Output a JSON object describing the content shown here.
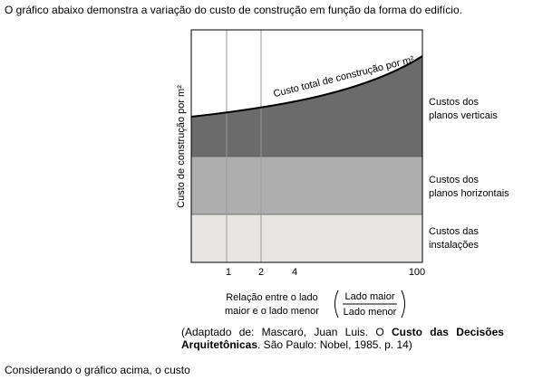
{
  "header": {
    "text": "O gráfico abaixo demonstra a variação do custo de construção em função da forma do edifício."
  },
  "figure": {
    "y_axis_label": "Custo de construção por m²",
    "curve_label": "Custo total de construção por m²",
    "x_ticks": [
      1,
      2,
      4,
      100
    ],
    "regions": [
      {
        "lines": [
          "Custos dos",
          "planos verticais"
        ]
      },
      {
        "lines": [
          "Custos dos",
          "planos horizontais"
        ]
      },
      {
        "lines": [
          "Custos das",
          "instalações"
        ]
      }
    ],
    "x_axis_label": {
      "lines": [
        "Relação entre o lado",
        "maior e o lado menor"
      ]
    },
    "fraction": {
      "numerator": "Lado maior",
      "denominator": "Lado menor"
    }
  },
  "caption": {
    "prefix": "(Adaptado de: Mascaró, Juan Luis. O ",
    "bold": "Custo das Decisões Arquitetônicas",
    "suffix": ". São Paulo: Nobel, 1985. p. 14)"
  },
  "footer": {
    "text": "Considerando o gráfico acima, o custo"
  }
}
